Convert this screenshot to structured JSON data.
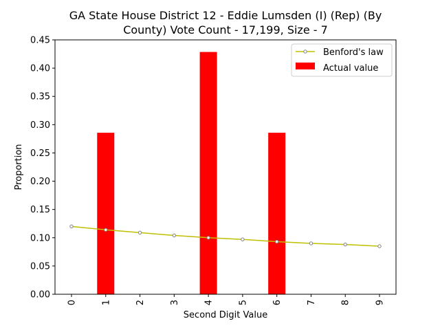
{
  "chart_data": {
    "type": "bar",
    "title_lines": [
      "GA State House District 12 - Eddie Lumsden (I) (Rep) (By",
      "County) Vote Count - 17,199, Size - 7"
    ],
    "xlabel": "Second Digit Value",
    "ylabel": "Proportion",
    "categories": [
      "0",
      "1",
      "2",
      "3",
      "4",
      "5",
      "6",
      "7",
      "8",
      "9"
    ],
    "ylim": [
      0,
      0.45
    ],
    "yticks": [
      "0.00",
      "0.05",
      "0.10",
      "0.15",
      "0.20",
      "0.25",
      "0.30",
      "0.35",
      "0.40",
      "0.45"
    ],
    "grid": false,
    "legend_position": "top-right",
    "series": [
      {
        "name": "Benford's law",
        "kind": "line",
        "color": "#bfbf00",
        "values": [
          0.12,
          0.114,
          0.109,
          0.104,
          0.1,
          0.097,
          0.093,
          0.09,
          0.088,
          0.085
        ]
      },
      {
        "name": "Actual value",
        "kind": "bar",
        "color": "#ff0000",
        "values": [
          0,
          0.2857,
          0,
          0,
          0.4286,
          0,
          0.2857,
          0,
          0,
          0
        ]
      }
    ]
  }
}
